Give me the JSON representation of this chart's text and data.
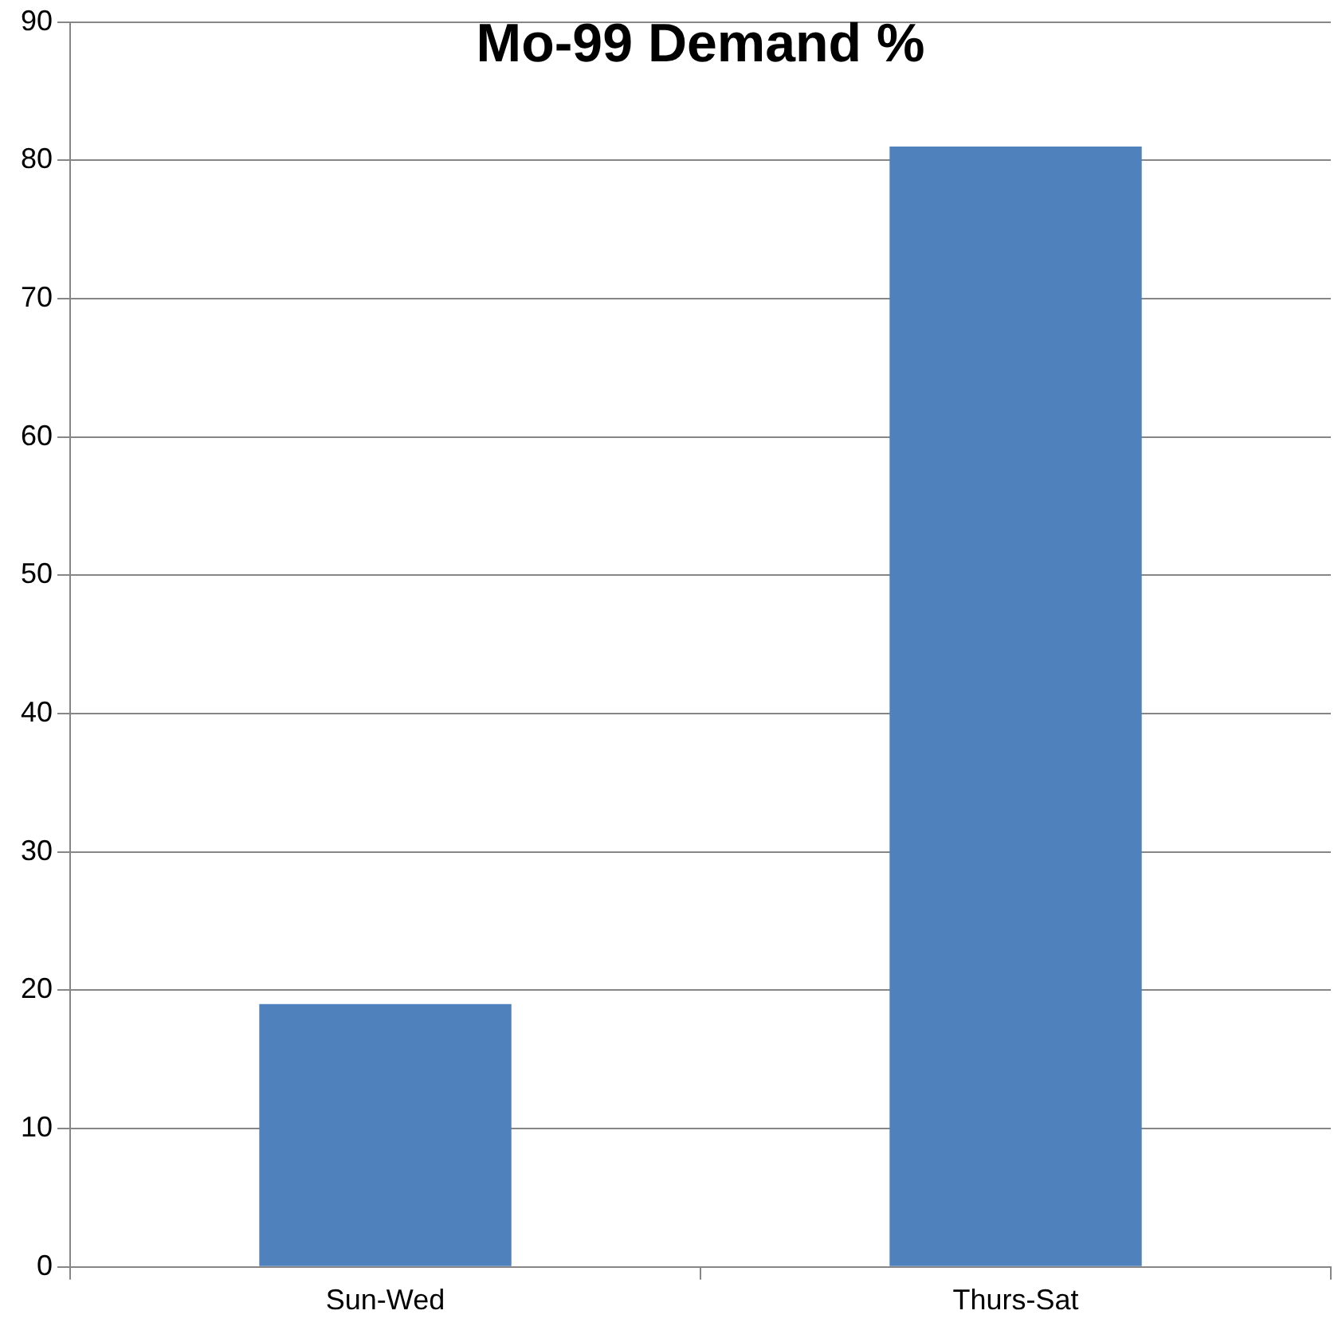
{
  "chart_data": {
    "type": "bar",
    "title": "Mo-99 Demand %",
    "categories": [
      "Sun-Wed",
      "Thurs-Sat"
    ],
    "values": [
      19,
      81
    ],
    "color": "#4f81bd",
    "ylim": [
      0,
      90
    ],
    "yticks": [
      0,
      10,
      20,
      30,
      40,
      50,
      60,
      70,
      80,
      90
    ],
    "grid": "y",
    "legend": false
  }
}
